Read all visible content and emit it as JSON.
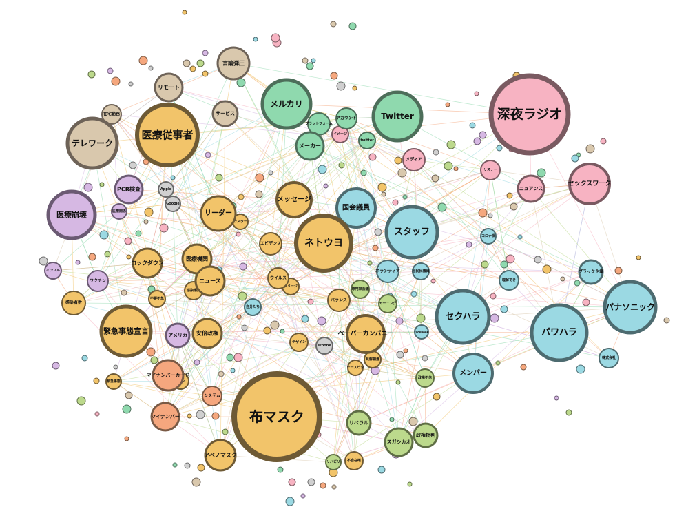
{
  "palette": {
    "orange": {
      "fill": "#f2c46a",
      "stroke": "#6e5a35"
    },
    "tan": {
      "fill": "#d9c8ad",
      "stroke": "#6e6358"
    },
    "green": {
      "fill": "#8fd9ae",
      "stroke": "#4d6e5a"
    },
    "pink": {
      "fill": "#f7b3c2",
      "stroke": "#7a5a61"
    },
    "blue": {
      "fill": "#9bd9e3",
      "stroke": "#4d6b70"
    },
    "purple": {
      "fill": "#d6b8e3",
      "stroke": "#6b5a73"
    },
    "olive": {
      "fill": "#bcd98c",
      "stroke": "#5f6e45"
    },
    "salmon": {
      "fill": "#f5a77e",
      "stroke": "#7a5a45"
    },
    "gray": {
      "fill": "#d0d0d0",
      "stroke": "#6a6a6a"
    }
  },
  "nodes": [
    {
      "label": "布マスク",
      "color": "orange"
    },
    {
      "label": "深夜ラジオ",
      "color": "pink"
    },
    {
      "label": "医療従事者",
      "color": "orange"
    },
    {
      "label": "ネトウヨ",
      "color": "orange"
    },
    {
      "label": "パナソニック",
      "color": "blue"
    },
    {
      "label": "パワハラ",
      "color": "blue"
    },
    {
      "label": "セクハラ",
      "color": "blue"
    },
    {
      "label": "緊急事態宣言",
      "color": "orange"
    },
    {
      "label": "テレワーク",
      "color": "tan"
    },
    {
      "label": "医療崩壊",
      "color": "purple"
    },
    {
      "label": "メルカリ",
      "color": "green"
    },
    {
      "label": "Twitter",
      "color": "green"
    },
    {
      "label": "スタッフ",
      "color": "blue"
    },
    {
      "label": "セックスワーク",
      "color": "pink"
    },
    {
      "label": "ペーパーカンパニー",
      "color": "orange"
    },
    {
      "label": "メッセージ",
      "color": "orange"
    },
    {
      "label": "国会議員",
      "color": "blue"
    },
    {
      "label": "メンバー",
      "color": "blue"
    },
    {
      "label": "言論弾圧",
      "color": "tan"
    },
    {
      "label": "リーダー",
      "color": "orange"
    },
    {
      "label": "アベノマスク",
      "color": "orange"
    },
    {
      "label": "ロックダウン",
      "color": "orange"
    },
    {
      "label": "医療機関",
      "color": "orange"
    },
    {
      "label": "ニュース",
      "color": "orange"
    },
    {
      "label": "安倍政権",
      "color": "orange"
    },
    {
      "label": "マイナンバーカード",
      "color": "salmon"
    },
    {
      "label": "マイナンバー",
      "color": "salmon"
    },
    {
      "label": "リモート",
      "color": "tan"
    },
    {
      "label": "PCR検査",
      "color": "purple"
    },
    {
      "label": "アメリカ",
      "color": "purple"
    },
    {
      "label": "ニュアンス",
      "color": "pink"
    },
    {
      "label": "メーカー",
      "color": "green"
    },
    {
      "label": "サービス",
      "color": "tan"
    },
    {
      "label": "スガシカオ",
      "color": "olive"
    },
    {
      "label": "リベラル",
      "color": "olive"
    },
    {
      "label": "政権批判",
      "color": "olive"
    },
    {
      "label": "ブラック企業",
      "color": "blue"
    },
    {
      "label": "ワクチン",
      "color": "purple"
    },
    {
      "label": "感染者数",
      "color": "orange"
    },
    {
      "label": "バランス",
      "color": "orange"
    },
    {
      "label": "ボランティア",
      "color": "blue"
    },
    {
      "label": "メディア",
      "color": "pink"
    },
    {
      "label": "エビデンス",
      "color": "orange"
    },
    {
      "label": "在宅勤務",
      "color": "tan"
    },
    {
      "label": "ウイルス",
      "color": "orange"
    },
    {
      "label": "システム",
      "color": "salmon"
    },
    {
      "label": "株式会社",
      "color": "blue"
    },
    {
      "label": "理解でき",
      "color": "blue"
    },
    {
      "label": "インフル",
      "color": "purple"
    },
    {
      "label": "感染爆発",
      "color": "orange"
    },
    {
      "label": "コロナ禍",
      "color": "blue"
    },
    {
      "label": "イメージ",
      "color": "pink"
    },
    {
      "label": "プラットフォーム",
      "color": "green"
    },
    {
      "label": "アカウント",
      "color": "green"
    },
    {
      "label": "twitter",
      "color": "green"
    },
    {
      "label": "リスナー",
      "color": "pink"
    },
    {
      "label": "デザイン",
      "color": "orange"
    },
    {
      "label": "iPhone",
      "color": "gray"
    },
    {
      "label": "Apple",
      "color": "gray"
    },
    {
      "label": "Google",
      "color": "gray"
    },
    {
      "label": "政権不信",
      "color": "olive"
    },
    {
      "label": "不要不急",
      "color": "orange"
    },
    {
      "label": "自分たち",
      "color": "blue"
    },
    {
      "label": "ダメージ",
      "color": "orange"
    },
    {
      "label": "モーニング",
      "color": "olive"
    },
    {
      "label": "見解相違",
      "color": "orange"
    },
    {
      "label": "facebook",
      "color": "blue"
    },
    {
      "label": "不自在確",
      "color": "orange"
    },
    {
      "label": "ラスター",
      "color": "orange"
    },
    {
      "label": "リハビリ",
      "color": "olive"
    },
    {
      "label": "専門家会議",
      "color": "olive"
    },
    {
      "label": "国民民議員",
      "color": "blue"
    },
    {
      "label": "医療関係",
      "color": "purple"
    },
    {
      "label": "緊急事態",
      "color": "orange"
    },
    {
      "label": "ーースビジ",
      "color": "orange"
    },
    {
      "label": "マスク",
      "color": "orange"
    }
  ]
}
